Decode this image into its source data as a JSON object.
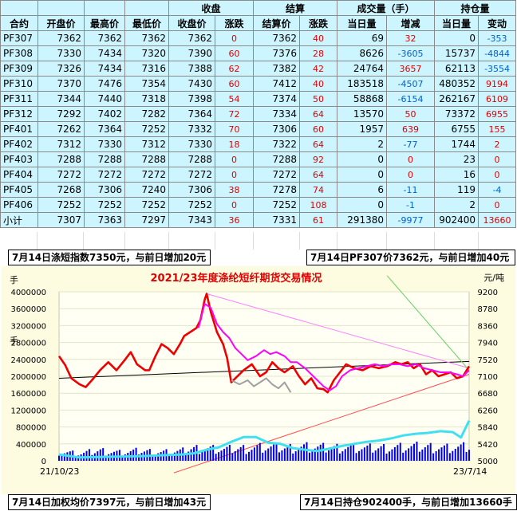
{
  "table": {
    "groups": {
      "close": "收盘",
      "settle": "结算",
      "volume": "成交量（手）",
      "oi": "持仓量"
    },
    "headers": [
      "合约",
      "开盘价",
      "最高价",
      "最低价",
      "收盘价",
      "涨跌",
      "结算价",
      "涨跌",
      "当日量",
      "增减",
      "当日量",
      "变动"
    ],
    "rows": [
      [
        "PF307",
        "7362",
        "7362",
        "7362",
        "7362",
        "0",
        "7362",
        "40",
        "69",
        "32",
        "0",
        "-353"
      ],
      [
        "PF308",
        "7330",
        "7434",
        "7320",
        "7390",
        "60",
        "7376",
        "28",
        "8626",
        "-3605",
        "15737",
        "-4844"
      ],
      [
        "PF309",
        "7326",
        "7434",
        "7316",
        "7388",
        "62",
        "7382",
        "42",
        "24764",
        "3657",
        "62113",
        "-3554"
      ],
      [
        "PF310",
        "7370",
        "7476",
        "7354",
        "7430",
        "60",
        "7412",
        "40",
        "183518",
        "-4507",
        "480352",
        "9194"
      ],
      [
        "PF311",
        "7344",
        "7440",
        "7318",
        "7398",
        "54",
        "7374",
        "50",
        "58868",
        "-6154",
        "262167",
        "6109"
      ],
      [
        "PF312",
        "7292",
        "7402",
        "7282",
        "7364",
        "72",
        "7334",
        "64",
        "13570",
        "50",
        "73372",
        "6955"
      ],
      [
        "PF401",
        "7262",
        "7364",
        "7252",
        "7332",
        "70",
        "7306",
        "60",
        "1957",
        "639",
        "6755",
        "155"
      ],
      [
        "PF402",
        "7312",
        "7330",
        "7312",
        "7330",
        "18",
        "7322",
        "64",
        "2",
        "-77",
        "1744",
        "2"
      ],
      [
        "PF403",
        "7288",
        "7288",
        "7288",
        "7288",
        "0",
        "7288",
        "92",
        "0",
        "0",
        "23",
        "0"
      ],
      [
        "PF404",
        "7272",
        "7272",
        "7272",
        "7272",
        "0",
        "7272",
        "64",
        "0",
        "0",
        "16",
        "0"
      ],
      [
        "PF405",
        "7268",
        "7306",
        "7240",
        "7306",
        "38",
        "7278",
        "74",
        "6",
        "-11",
        "119",
        "-4"
      ],
      [
        "PF406",
        "7252",
        "7252",
        "7252",
        "7252",
        "0",
        "7252",
        "108",
        "0",
        "-1",
        "2",
        "0"
      ],
      [
        "小计",
        "7307",
        "7363",
        "7297",
        "7343",
        "36",
        "7331",
        "61",
        "291380",
        "-9977",
        "902400",
        "13660"
      ]
    ],
    "colored_cols": [
      5,
      7,
      9,
      11
    ]
  },
  "notes": {
    "a": "7月14日涤短指数7350元，与前日增加20元",
    "b": "7月14日PF307价7362元，与前日增加40元",
    "c": "7月14日加权均价7397元，与前日增加43元",
    "d": "7月14日持仓902400手，与前日增加13660手"
  },
  "chart_data": {
    "type": "line",
    "title": "2021/23年度涤纶短纤期货交易情况",
    "ylabel_left": "手",
    "ylabel_right": "元/吨",
    "ylim_left": [
      0,
      4000000
    ],
    "ylim_right": [
      5000,
      9200
    ],
    "yticks_left": [
      "0",
      "400000",
      "800000",
      "1200000",
      "1600000",
      "2000000",
      "2400000",
      "2800000",
      "3200000",
      "3600000",
      "4000000"
    ],
    "yticks_right": [
      "5000",
      "5420",
      "5840",
      "6260",
      "6680",
      "7100",
      "7520",
      "7940",
      "8360",
      "8780",
      "9200"
    ],
    "x_start_label": "21/10/23",
    "x_end_label": "23/7/14",
    "x_range": [
      0,
      1
    ],
    "series": [
      {
        "role": "price_main",
        "axis": "right",
        "color": "#ee0000",
        "points": [
          [
            0,
            7600
          ],
          [
            0.015,
            7380
          ],
          [
            0.03,
            7050
          ],
          [
            0.05,
            6900
          ],
          [
            0.065,
            6830
          ],
          [
            0.08,
            7000
          ],
          [
            0.1,
            7250
          ],
          [
            0.12,
            7450
          ],
          [
            0.14,
            7250
          ],
          [
            0.16,
            7500
          ],
          [
            0.175,
            7700
          ],
          [
            0.19,
            7400
          ],
          [
            0.21,
            7250
          ],
          [
            0.22,
            7250
          ],
          [
            0.235,
            7600
          ],
          [
            0.25,
            7900
          ],
          [
            0.265,
            7800
          ],
          [
            0.28,
            7650
          ],
          [
            0.295,
            7900
          ],
          [
            0.305,
            8100
          ],
          [
            0.32,
            8200
          ],
          [
            0.335,
            8300
          ],
          [
            0.345,
            8500
          ],
          [
            0.355,
            9000
          ],
          [
            0.36,
            9150
          ],
          [
            0.37,
            8700
          ],
          [
            0.385,
            8200
          ],
          [
            0.4,
            7900
          ],
          [
            0.41,
            7550
          ],
          [
            0.42,
            6950
          ],
          [
            0.435,
            7100
          ],
          [
            0.45,
            7250
          ],
          [
            0.47,
            7400
          ],
          [
            0.49,
            7100
          ],
          [
            0.505,
            7200
          ],
          [
            0.52,
            7450
          ],
          [
            0.535,
            7300
          ],
          [
            0.55,
            7200
          ],
          [
            0.57,
            7350
          ],
          [
            0.585,
            7100
          ],
          [
            0.6,
            6900
          ],
          [
            0.615,
            7050
          ],
          [
            0.63,
            6800
          ],
          [
            0.645,
            6780
          ],
          [
            0.655,
            6700
          ],
          [
            0.67,
            7000
          ],
          [
            0.685,
            7200
          ],
          [
            0.7,
            7400
          ],
          [
            0.72,
            7300
          ],
          [
            0.74,
            7250
          ],
          [
            0.76,
            7350
          ],
          [
            0.78,
            7300
          ],
          [
            0.8,
            7350
          ],
          [
            0.82,
            7450
          ],
          [
            0.835,
            7400
          ],
          [
            0.85,
            7450
          ],
          [
            0.865,
            7300
          ],
          [
            0.88,
            7400
          ],
          [
            0.895,
            7150
          ],
          [
            0.91,
            7250
          ],
          [
            0.925,
            7100
          ],
          [
            0.94,
            7150
          ],
          [
            0.955,
            7200
          ],
          [
            0.97,
            7050
          ],
          [
            0.985,
            7100
          ],
          [
            1.0,
            7350
          ]
        ]
      },
      {
        "role": "price_secondary",
        "axis": "right",
        "color": "#ff00ff",
        "points": [
          [
            0.34,
            8300
          ],
          [
            0.355,
            8900
          ],
          [
            0.37,
            8800
          ],
          [
            0.385,
            8400
          ],
          [
            0.4,
            8200
          ],
          [
            0.415,
            8050
          ],
          [
            0.43,
            7800
          ],
          [
            0.445,
            7650
          ],
          [
            0.46,
            7500
          ],
          [
            0.48,
            7600
          ],
          [
            0.5,
            7750
          ],
          [
            0.515,
            7650
          ],
          [
            0.53,
            7700
          ],
          [
            0.55,
            7600
          ],
          [
            0.565,
            7450
          ],
          [
            0.58,
            7450
          ],
          [
            0.6,
            7300
          ],
          [
            0.615,
            7150
          ],
          [
            0.63,
            7000
          ],
          [
            0.645,
            6850
          ],
          [
            0.66,
            6750
          ],
          [
            0.675,
            6850
          ],
          [
            0.69,
            7100
          ],
          [
            0.71,
            7250
          ],
          [
            0.73,
            7300
          ],
          [
            0.75,
            7350
          ],
          [
            0.77,
            7400
          ],
          [
            0.79,
            7350
          ],
          [
            0.81,
            7400
          ],
          [
            0.83,
            7400
          ],
          [
            0.85,
            7350
          ],
          [
            0.87,
            7400
          ],
          [
            0.89,
            7300
          ],
          [
            0.91,
            7250
          ],
          [
            0.93,
            7200
          ],
          [
            0.95,
            7200
          ],
          [
            0.97,
            7150
          ],
          [
            0.985,
            7100
          ],
          [
            1.0,
            7250
          ]
        ]
      },
      {
        "role": "price_reference",
        "axis": "right",
        "color": "#a0a0a0",
        "points": [
          [
            0.42,
            7000
          ],
          [
            0.44,
            6900
          ],
          [
            0.46,
            7000
          ],
          [
            0.475,
            6850
          ],
          [
            0.49,
            6950
          ],
          [
            0.505,
            7050
          ],
          [
            0.52,
            6900
          ],
          [
            0.535,
            6800
          ],
          [
            0.55,
            6950
          ],
          [
            0.565,
            6700
          ]
        ]
      },
      {
        "role": "volume",
        "axis": "left",
        "color": "#0000ee",
        "kind": "bars",
        "points": [
          [
            0,
            220000
          ],
          [
            0.05,
            160000
          ],
          [
            0.1,
            240000
          ],
          [
            0.15,
            190000
          ],
          [
            0.2,
            230000
          ],
          [
            0.25,
            200000
          ],
          [
            0.3,
            220000
          ],
          [
            0.32,
            280000
          ],
          [
            0.35,
            300000
          ],
          [
            0.4,
            260000
          ],
          [
            0.45,
            290000
          ],
          [
            0.5,
            320000
          ],
          [
            0.55,
            300000
          ],
          [
            0.6,
            330000
          ],
          [
            0.65,
            300000
          ],
          [
            0.7,
            320000
          ],
          [
            0.75,
            290000
          ],
          [
            0.8,
            310000
          ],
          [
            0.85,
            320000
          ],
          [
            0.9,
            330000
          ],
          [
            0.95,
            300000
          ],
          [
            1.0,
            320000
          ]
        ]
      },
      {
        "role": "open_interest",
        "axis": "left",
        "color": "#40e0f0",
        "points": [
          [
            0,
            150000
          ],
          [
            0.05,
            80000
          ],
          [
            0.1,
            90000
          ],
          [
            0.15,
            100000
          ],
          [
            0.2,
            110000
          ],
          [
            0.25,
            130000
          ],
          [
            0.3,
            150000
          ],
          [
            0.33,
            180000
          ],
          [
            0.36,
            260000
          ],
          [
            0.39,
            320000
          ],
          [
            0.42,
            450000
          ],
          [
            0.45,
            560000
          ],
          [
            0.48,
            560000
          ],
          [
            0.51,
            430000
          ],
          [
            0.54,
            400000
          ],
          [
            0.57,
            300000
          ],
          [
            0.6,
            260000
          ],
          [
            0.63,
            230000
          ],
          [
            0.66,
            290000
          ],
          [
            0.69,
            350000
          ],
          [
            0.72,
            400000
          ],
          [
            0.75,
            450000
          ],
          [
            0.78,
            480000
          ],
          [
            0.81,
            530000
          ],
          [
            0.84,
            600000
          ],
          [
            0.87,
            640000
          ],
          [
            0.9,
            660000
          ],
          [
            0.93,
            700000
          ],
          [
            0.96,
            680000
          ],
          [
            0.98,
            550000
          ],
          [
            1.0,
            950000
          ]
        ]
      }
    ],
    "trend_lines": [
      {
        "color": "#000000",
        "axis": "right",
        "from": [
          0,
          7050
        ],
        "to": [
          1.0,
          7470
        ]
      },
      {
        "color": "#ff5050",
        "axis": "right",
        "from": [
          0.28,
          4700
        ],
        "to": [
          1.0,
          7150
        ]
      },
      {
        "color": "#ff80ff",
        "axis": "right",
        "from": [
          0.36,
          9150
        ],
        "to": [
          1.0,
          7300
        ]
      },
      {
        "color": "#60d060",
        "axis": "right",
        "from": [
          0.8,
          9600
        ],
        "to": [
          1.0,
          7250
        ]
      }
    ]
  }
}
